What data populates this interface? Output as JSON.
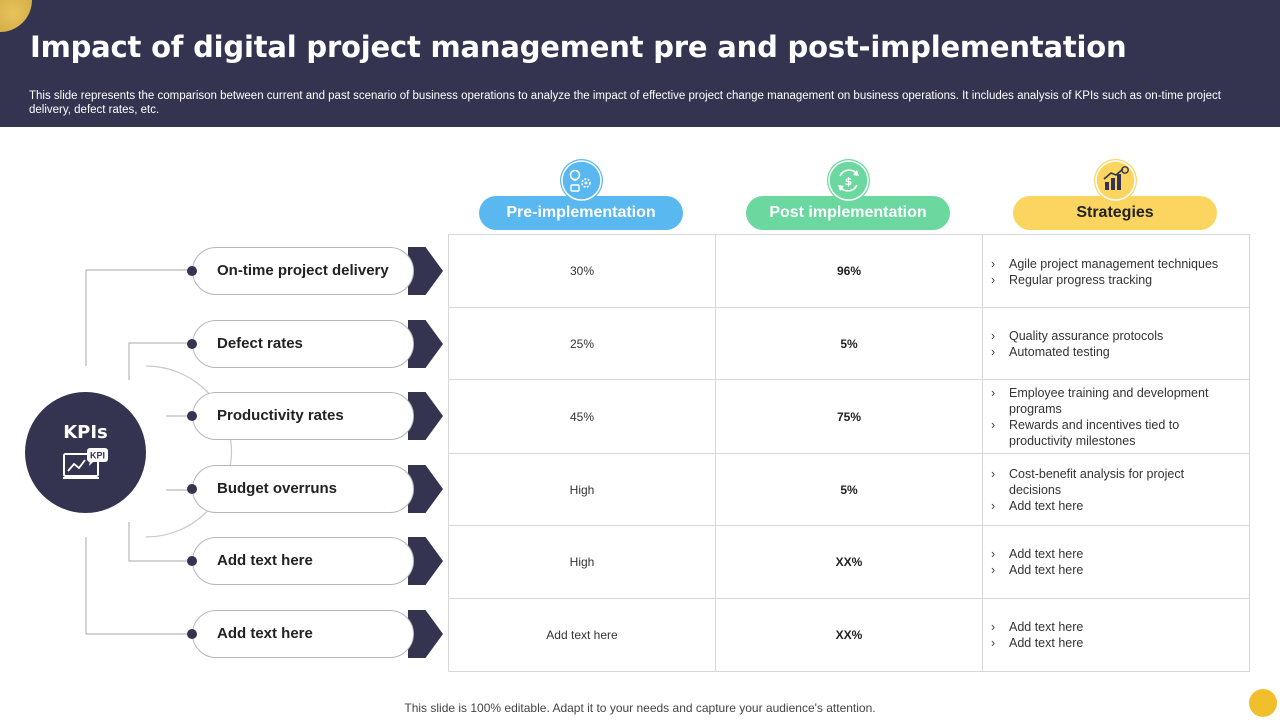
{
  "header": {
    "title": "Impact of digital project management pre and post-implementation",
    "subtitle": "This slide represents the comparison between current and past scenario of business operations to analyze the impact of effective project change management on business operations. It includes analysis of KPIs such as on-time project delivery, defect rates, etc."
  },
  "hub": {
    "label": "KPIs",
    "icon_text": "KPI",
    "icon": "kpi-chart-icon"
  },
  "columns": [
    {
      "label": "Pre-implementation",
      "color": "#5ab8f0",
      "icon": "idea-gear-icon"
    },
    {
      "label": "Post implementation",
      "color": "#6bd89f",
      "icon": "dollar-cycle-icon"
    },
    {
      "label": "Strategies",
      "color": "#fbd560",
      "icon": "growth-chart-icon"
    }
  ],
  "rows": [
    {
      "kpi": "On-time project delivery",
      "pre": "30%",
      "post": "96%",
      "strategies": [
        "Agile project management techniques",
        "Regular progress tracking"
      ]
    },
    {
      "kpi": "Defect rates",
      "pre": "25%",
      "post": "5%",
      "strategies": [
        "Quality assurance protocols",
        "Automated testing"
      ]
    },
    {
      "kpi": "Productivity rates",
      "pre": "45%",
      "post": "75%",
      "strategies": [
        "Employee training and development programs",
        "Rewards and incentives tied to productivity milestones"
      ]
    },
    {
      "kpi": "Budget overruns",
      "pre": "High",
      "post": "5%",
      "strategies": [
        "Cost-benefit analysis for project decisions",
        "Add text here"
      ]
    },
    {
      "kpi": "Add  text here",
      "pre": "High",
      "post": "XX%",
      "strategies": [
        "Add text here",
        "Add text here"
      ]
    },
    {
      "kpi": "Add  text here",
      "pre": "Add text here",
      "post": "XX%",
      "strategies": [
        "Add text here",
        "Add text here"
      ]
    }
  ],
  "footer": "This slide is 100% editable. Adapt it to your needs and capture your audience's attention.",
  "colors": {
    "navy": "#343451",
    "blue": "#5ab8f0",
    "green": "#6bd89f",
    "yellow": "#fbd560",
    "accent": "#f1bf2c"
  }
}
